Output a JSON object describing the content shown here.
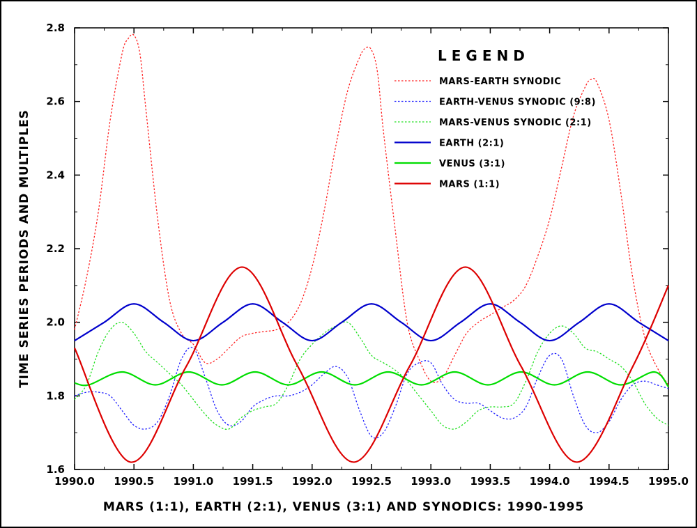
{
  "chart_data": {
    "type": "line",
    "title": "MARS (1:1), EARTH (2:1), VENUS (3:1) AND SYNODICS: 1990-1995",
    "xlabel": "MARS (1:1), EARTH (2:1), VENUS (3:1) AND SYNODICS: 1990-1995",
    "ylabel": "TIME SERIES PERIODS AND MULTIPLES",
    "xlim": [
      1990.0,
      1995.0
    ],
    "ylim": [
      1.6,
      2.8
    ],
    "x_ticks": [
      "1990.0",
      "1990.5",
      "1991.0",
      "1991.5",
      "1992.0",
      "1992.5",
      "1993.0",
      "1993.5",
      "1994.0",
      "1994.5",
      "1995.0"
    ],
    "y_ticks": [
      "1.6",
      "1.8",
      "2.0",
      "2.2",
      "2.4",
      "2.6",
      "2.8"
    ],
    "legend": {
      "title": "LEGEND",
      "placement": "top-right",
      "entries": [
        {
          "label": "MARS-EARTH SYNODIC",
          "color": "#ff2020",
          "style": "dotted"
        },
        {
          "label": "EARTH-VENUS SYNODIC (9:8)",
          "color": "#2020ff",
          "style": "dotted"
        },
        {
          "label": "MARS-VENUS SYNODIC (2:1)",
          "color": "#20e020",
          "style": "dotted"
        },
        {
          "label": "EARTH (2:1)",
          "color": "#0000cc",
          "style": "solid"
        },
        {
          "label": "VENUS (3:1)",
          "color": "#00dd00",
          "style": "solid"
        },
        {
          "label": "MARS (1:1)",
          "color": "#dd0000",
          "style": "solid"
        }
      ]
    },
    "series": [
      {
        "name": "MARS-EARTH SYNODIC",
        "color": "#ff2020",
        "style": "dotted",
        "x": [
          1990.0,
          1990.1,
          1990.2,
          1990.3,
          1990.4,
          1990.45,
          1990.5,
          1990.55,
          1990.6,
          1990.7,
          1990.8,
          1990.9,
          1991.0,
          1991.1,
          1991.2,
          1991.3,
          1991.4,
          1991.5,
          1991.6,
          1991.7,
          1991.8,
          1991.9,
          1992.0,
          1992.1,
          1992.2,
          1992.3,
          1992.4,
          1992.45,
          1992.5,
          1992.55,
          1992.6,
          1992.7,
          1992.8,
          1992.9,
          1993.0,
          1993.1,
          1993.2,
          1993.3,
          1993.4,
          1993.5,
          1993.6,
          1993.7,
          1993.8,
          1993.9,
          1994.0,
          1994.1,
          1994.2,
          1994.3,
          1994.35,
          1994.4,
          1994.5,
          1994.6,
          1994.7,
          1994.8,
          1994.9,
          1995.0
        ],
        "values": [
          1.98,
          2.12,
          2.3,
          2.55,
          2.73,
          2.77,
          2.78,
          2.73,
          2.58,
          2.28,
          2.06,
          1.97,
          1.94,
          1.89,
          1.9,
          1.93,
          1.96,
          1.97,
          1.975,
          1.98,
          2.0,
          2.05,
          2.15,
          2.3,
          2.48,
          2.63,
          2.72,
          2.745,
          2.74,
          2.68,
          2.52,
          2.25,
          2.0,
          1.9,
          1.84,
          1.85,
          1.91,
          1.97,
          2.0,
          2.02,
          2.04,
          2.06,
          2.1,
          2.18,
          2.28,
          2.42,
          2.56,
          2.64,
          2.66,
          2.65,
          2.55,
          2.35,
          2.12,
          1.96,
          1.88,
          1.83
        ]
      },
      {
        "name": "EARTH-VENUS SYNODIC (9:8)",
        "color": "#2020ff",
        "style": "dotted",
        "x": [
          1990.0,
          1990.1,
          1990.2,
          1990.3,
          1990.4,
          1990.5,
          1990.6,
          1990.7,
          1990.8,
          1990.9,
          1991.0,
          1991.1,
          1991.2,
          1991.3,
          1991.4,
          1991.5,
          1991.6,
          1991.7,
          1991.8,
          1991.9,
          1992.0,
          1992.1,
          1992.2,
          1992.3,
          1992.4,
          1992.5,
          1992.6,
          1992.7,
          1992.8,
          1992.9,
          1993.0,
          1993.1,
          1993.2,
          1993.3,
          1993.4,
          1993.5,
          1993.6,
          1993.7,
          1993.8,
          1993.9,
          1994.0,
          1994.1,
          1994.2,
          1994.3,
          1994.4,
          1994.5,
          1994.6,
          1994.7,
          1994.8,
          1994.9,
          1995.0
        ],
        "values": [
          1.8,
          1.81,
          1.81,
          1.8,
          1.76,
          1.72,
          1.71,
          1.73,
          1.8,
          1.9,
          1.93,
          1.85,
          1.76,
          1.72,
          1.73,
          1.77,
          1.79,
          1.8,
          1.8,
          1.81,
          1.83,
          1.86,
          1.88,
          1.85,
          1.76,
          1.69,
          1.7,
          1.77,
          1.86,
          1.89,
          1.89,
          1.83,
          1.79,
          1.78,
          1.78,
          1.76,
          1.74,
          1.74,
          1.77,
          1.85,
          1.91,
          1.9,
          1.8,
          1.72,
          1.7,
          1.73,
          1.79,
          1.83,
          1.84,
          1.83,
          1.82
        ]
      },
      {
        "name": "MARS-VENUS SYNODIC (2:1)",
        "color": "#20e020",
        "style": "dotted",
        "x": [
          1990.0,
          1990.1,
          1990.2,
          1990.3,
          1990.4,
          1990.5,
          1990.6,
          1990.7,
          1990.8,
          1990.9,
          1991.0,
          1991.1,
          1991.2,
          1991.3,
          1991.4,
          1991.5,
          1991.6,
          1991.7,
          1991.8,
          1991.9,
          1992.0,
          1992.1,
          1992.2,
          1992.3,
          1992.4,
          1992.5,
          1992.6,
          1992.7,
          1992.8,
          1992.9,
          1993.0,
          1993.1,
          1993.2,
          1993.3,
          1993.4,
          1993.5,
          1993.6,
          1993.7,
          1993.8,
          1993.9,
          1994.0,
          1994.1,
          1994.2,
          1994.3,
          1994.4,
          1994.5,
          1994.6,
          1994.7,
          1994.8,
          1994.9,
          1995.0
        ],
        "values": [
          1.79,
          1.83,
          1.92,
          1.98,
          2.0,
          1.97,
          1.92,
          1.89,
          1.86,
          1.83,
          1.79,
          1.75,
          1.72,
          1.71,
          1.74,
          1.76,
          1.77,
          1.78,
          1.83,
          1.9,
          1.94,
          1.97,
          1.99,
          2.0,
          1.96,
          1.91,
          1.89,
          1.87,
          1.84,
          1.8,
          1.76,
          1.72,
          1.71,
          1.73,
          1.76,
          1.77,
          1.77,
          1.78,
          1.84,
          1.92,
          1.97,
          1.99,
          1.97,
          1.93,
          1.92,
          1.9,
          1.88,
          1.84,
          1.78,
          1.74,
          1.72
        ]
      },
      {
        "name": "EARTH (2:1)",
        "color": "#0000cc",
        "style": "solid",
        "x": [
          1990.0,
          1990.25,
          1990.5,
          1990.75,
          1991.0,
          1991.25,
          1991.5,
          1991.75,
          1992.0,
          1992.25,
          1992.5,
          1992.75,
          1993.0,
          1993.25,
          1993.5,
          1993.75,
          1994.0,
          1994.25,
          1994.5,
          1994.75,
          1995.0
        ],
        "values": [
          1.95,
          2.0,
          2.05,
          2.0,
          1.95,
          2.0,
          2.05,
          2.0,
          1.95,
          2.0,
          2.05,
          2.0,
          1.95,
          2.0,
          2.05,
          2.0,
          1.95,
          2.0,
          2.05,
          2.0,
          1.95
        ]
      },
      {
        "name": "VENUS (3:1)",
        "color": "#00dd00",
        "style": "solid",
        "x": [
          1990.0,
          1990.12,
          1990.4,
          1990.68,
          1990.96,
          1991.24,
          1991.52,
          1991.8,
          1992.08,
          1992.36,
          1992.64,
          1992.92,
          1993.2,
          1993.48,
          1993.76,
          1994.04,
          1994.32,
          1994.6,
          1994.88,
          1995.0
        ],
        "values": [
          1.835,
          1.83,
          1.865,
          1.83,
          1.865,
          1.83,
          1.865,
          1.83,
          1.865,
          1.83,
          1.865,
          1.83,
          1.865,
          1.83,
          1.865,
          1.83,
          1.865,
          1.83,
          1.865,
          1.825
        ]
      },
      {
        "name": "MARS (1:1)",
        "color": "#dd0000",
        "style": "solid",
        "x": [
          1990.0,
          1990.47,
          1990.94,
          1991.41,
          1991.88,
          1992.35,
          1992.82,
          1993.29,
          1993.76,
          1994.23,
          1994.7,
          1995.0
        ],
        "values": [
          1.93,
          1.62,
          1.88,
          2.15,
          1.88,
          1.62,
          1.88,
          2.15,
          1.88,
          1.62,
          1.88,
          2.1
        ]
      }
    ]
  }
}
